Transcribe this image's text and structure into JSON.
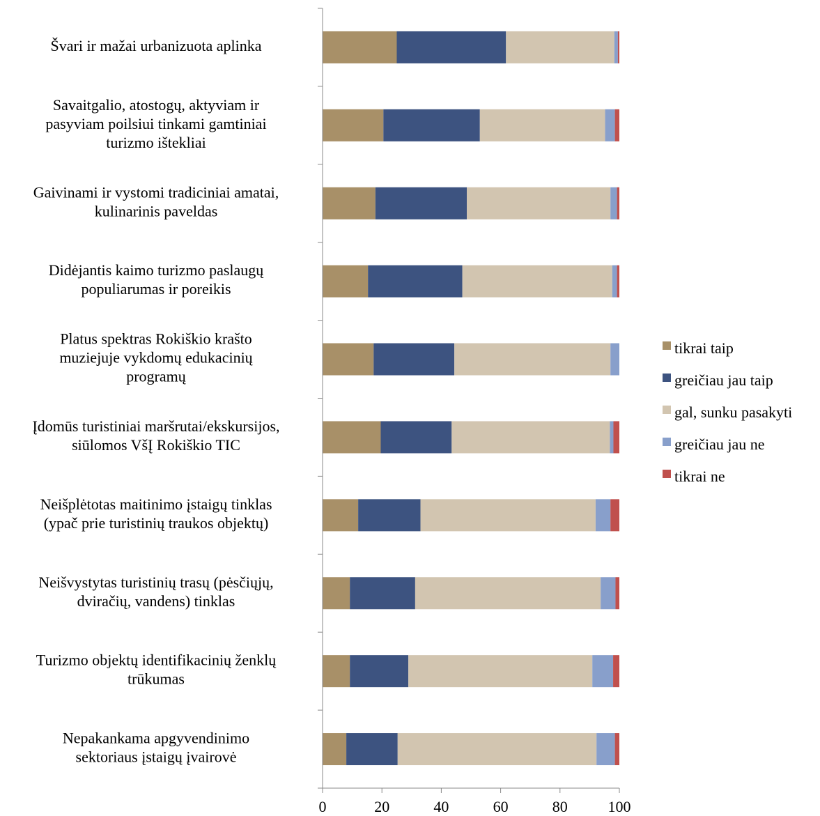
{
  "chart_data": {
    "type": "bar",
    "orientation": "horizontal",
    "stacked": true,
    "categories": [
      "Švari ir mažai urbanizuota aplinka",
      "Savaitgalio, atostogų, aktyviam ir pasyviam poilsiui tinkami gamtiniai turizmo ištekliai",
      "Gaivinami ir vystomi tradiciniai amatai, kulinarinis paveldas",
      "Didėjantis kaimo turizmo paslaugų populiarumas ir poreikis",
      "Platus spektras Rokiškio krašto muziejuje vykdomų edukacinių programų",
      "Įdomūs turistiniai maršrutai/ekskursijos, siūlomos VšĮ Rokiškio TIC",
      "Neišplėtotas maitinimo įstaigų tinklas (ypač prie turistinių traukos objektų)",
      "Neišvystytas turistinių trasų (pėsčiųjų, dviračių, vandens) tinklas",
      "Turizmo objektų identifikacinių ženklų trūkumas",
      "Nepakankama apgyvendinimo sektoriaus įstaigų įvairovė"
    ],
    "category_lines": [
      [
        "Švari ir mažai urbanizuota aplinka"
      ],
      [
        "Savaitgalio, atostogų, aktyviam ir",
        "pasyviam poilsiui tinkami gamtiniai",
        "turizmo ištekliai"
      ],
      [
        "Gaivinami ir vystomi tradiciniai amatai,",
        "kulinarinis paveldas"
      ],
      [
        "Didėjantis kaimo turizmo paslaugų",
        "populiarumas ir poreikis"
      ],
      [
        "Platus spektras Rokiškio krašto",
        "muziejuje vykdomų edukacinių",
        "programų"
      ],
      [
        "Įdomūs turistiniai maršrutai/ekskursijos,",
        "siūlomos VšĮ Rokiškio TIC"
      ],
      [
        "Neišplėtotas maitinimo įstaigų tinklas",
        "(ypač prie turistinių traukos objektų)"
      ],
      [
        "Neišvystytas turistinių trasų (pėsčiųjų,",
        "dviračių, vandens) tinklas"
      ],
      [
        "Turizmo objektų identifikacinių ženklų",
        "trūkumas"
      ],
      [
        "Nepakankama apgyvendinimo",
        "sektoriaus įstaigų įvairovė"
      ]
    ],
    "series": [
      {
        "name": "tikrai taip",
        "color": "#A89068",
        "values": [
          25,
          20.5,
          17.8,
          15.3,
          17.2,
          19.6,
          12,
          9.2,
          9.2,
          8
        ]
      },
      {
        "name": "greičiau jau taip",
        "color": "#3D5380",
        "values": [
          36.8,
          32.5,
          30.8,
          31.8,
          27.2,
          23.9,
          21,
          22,
          19.7,
          17.3
        ]
      },
      {
        "name": "gal, sunku pasakyti",
        "color": "#D2C5B0",
        "values": [
          36.5,
          42.2,
          48.4,
          50.5,
          52.6,
          53.3,
          59,
          62.5,
          62,
          67
        ]
      },
      {
        "name": "greičiau jau ne",
        "color": "#889FCB",
        "values": [
          1.2,
          3.3,
          2.2,
          1.6,
          3,
          1.2,
          5,
          5,
          7,
          6.2
        ]
      },
      {
        "name": "tikrai ne",
        "color": "#C0504D",
        "values": [
          0.5,
          1.5,
          0.8,
          0.8,
          0,
          2,
          3,
          1.3,
          2.1,
          1.5
        ]
      }
    ],
    "x_ticks": [
      "0",
      "20",
      "40",
      "60",
      "80",
      "100"
    ],
    "xlim": [
      0,
      100
    ],
    "title": "",
    "xlabel": "",
    "ylabel": "",
    "grid": false,
    "legend_position": "right"
  }
}
